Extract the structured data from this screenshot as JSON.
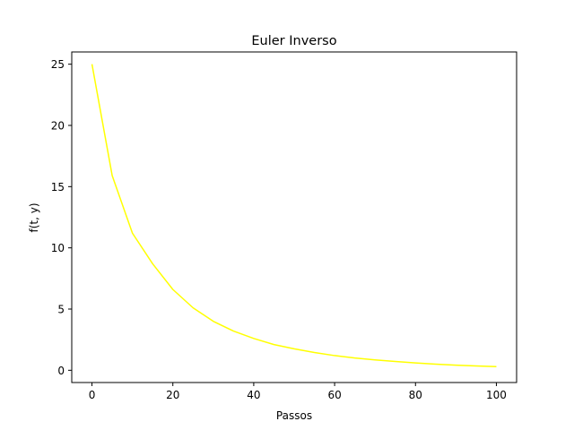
{
  "chart_data": {
    "type": "line",
    "title": "Euler Inverso",
    "xlabel": "Passos",
    "ylabel": "f(t, y)",
    "xlim": [
      -5,
      105
    ],
    "ylim": [
      -1,
      26
    ],
    "xticks": [
      0,
      20,
      40,
      60,
      80,
      100
    ],
    "yticks": [
      0,
      5,
      10,
      15,
      20,
      25
    ],
    "grid": false,
    "series": [
      {
        "color": "#ffff00",
        "x": [
          0,
          5,
          10,
          15,
          20,
          25,
          30,
          35,
          40,
          45,
          50,
          55,
          60,
          65,
          70,
          75,
          80,
          85,
          90,
          95,
          100
        ],
        "values": [
          25.0,
          15.9,
          11.2,
          8.7,
          6.6,
          5.1,
          4.0,
          3.2,
          2.6,
          2.1,
          1.75,
          1.45,
          1.2,
          1.0,
          0.85,
          0.72,
          0.6,
          0.5,
          0.42,
          0.35,
          0.3
        ]
      }
    ]
  }
}
